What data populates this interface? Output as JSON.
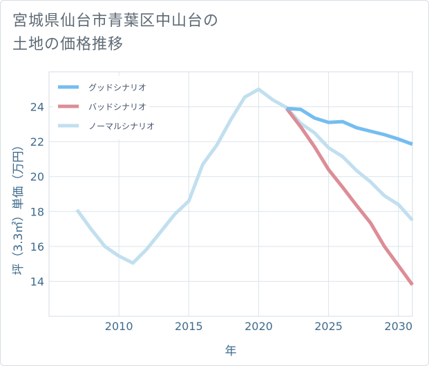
{
  "title_lines": [
    "宮城県仙台市青葉区中山台の",
    "土地の価格推移"
  ],
  "chart_data": {
    "type": "line",
    "title": "宮城県仙台市青葉区中山台の土地の価格推移",
    "xlabel": "年",
    "ylabel": "坪（3.3㎡）単価（万円）",
    "xlim": [
      2005,
      2031
    ],
    "ylim": [
      12,
      26
    ],
    "xticks": [
      2010,
      2015,
      2020,
      2025,
      2030
    ],
    "yticks": [
      14,
      16,
      18,
      20,
      22,
      24
    ],
    "grid": true,
    "legend_position": "top-left",
    "series": [
      {
        "name": "グッドシナリオ",
        "color": "#74bdf0",
        "x": [
          2022,
          2023,
          2024,
          2025,
          2026,
          2027,
          2028,
          2029,
          2030,
          2031
        ],
        "y": [
          23.9,
          23.85,
          23.35,
          23.1,
          23.15,
          22.8,
          22.6,
          22.4,
          22.15,
          21.85
        ]
      },
      {
        "name": "バッドシナリオ",
        "color": "#dc8d96",
        "x": [
          2022,
          2023,
          2024,
          2025,
          2026,
          2027,
          2028,
          2029,
          2030,
          2031
        ],
        "y": [
          23.9,
          22.85,
          21.7,
          20.4,
          19.4,
          18.35,
          17.35,
          16.0,
          14.9,
          13.8
        ]
      },
      {
        "name": "ノーマルシナリオ",
        "color": "#c1dfef",
        "x": [
          2007,
          2008,
          2009,
          2010,
          2011,
          2012,
          2013,
          2014,
          2015,
          2016,
          2017,
          2018,
          2019,
          2020,
          2021,
          2022,
          2023,
          2024,
          2025,
          2026,
          2027,
          2028,
          2029,
          2030,
          2031
        ],
        "y": [
          18.1,
          17.0,
          16.0,
          15.45,
          15.05,
          15.85,
          16.85,
          17.85,
          18.6,
          20.7,
          21.8,
          23.25,
          24.55,
          25.0,
          24.4,
          23.95,
          23.05,
          22.5,
          21.65,
          21.15,
          20.35,
          19.7,
          18.9,
          18.4,
          17.5
        ]
      }
    ]
  }
}
